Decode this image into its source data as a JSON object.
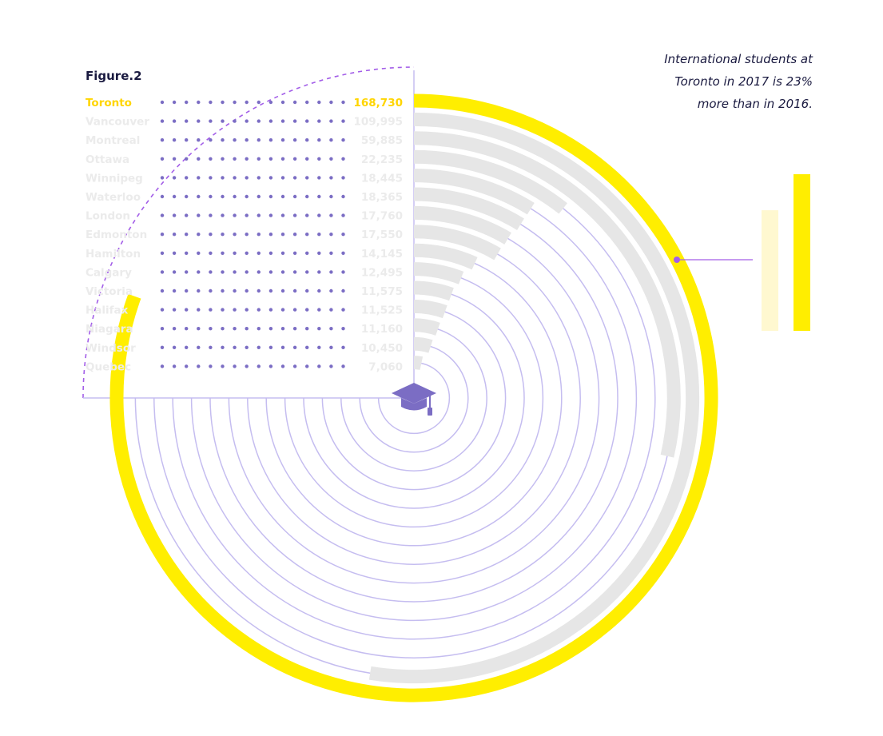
{
  "figure_label": "Figure.2",
  "annotation": {
    "lines": [
      "International students at",
      "Toronto in 2017 is 23%",
      "more than in 2016."
    ]
  },
  "colors": {
    "highlight": "#ffee00",
    "highlight_text": "#ffd500",
    "bar": "#e6e6e6",
    "ring": "#c5bdf0",
    "dot": "#7b6dc4",
    "dashed": "#a35ee8",
    "icon": "#7b6dc4",
    "pale_bar": "#fff8d0"
  },
  "icon": "graduation-cap-icon",
  "chart_data": {
    "type": "radial-bar",
    "title": "",
    "highlighted_category": "Toronto",
    "max_value": 168730,
    "categories": [
      "Toronto",
      "Vancouver",
      "Montreal",
      "Ottawa",
      "Winnipeg",
      "Waterloo",
      "London",
      "Edmonton",
      "Hamilton",
      "Calgary",
      "Victoria",
      "Halifax",
      "Niagara",
      "Windsor",
      "Quebec"
    ],
    "labels": [
      "168,730",
      "109,995",
      "59,885",
      "22,235",
      "18,445",
      "18,365",
      "17,760",
      "17,550",
      "14,145",
      "12,495",
      "11,575",
      "11,525",
      "11,160",
      "10,450",
      "7,060"
    ],
    "values": [
      168730,
      109995,
      59885,
      22235,
      18445,
      18365,
      17760,
      17550,
      14145,
      12495,
      11575,
      11525,
      11160,
      10450,
      7060
    ],
    "comparison": {
      "series": [
        {
          "year": "2016",
          "relative_value": 0.77
        },
        {
          "year": "2017",
          "relative_value": 1.0
        }
      ]
    }
  }
}
